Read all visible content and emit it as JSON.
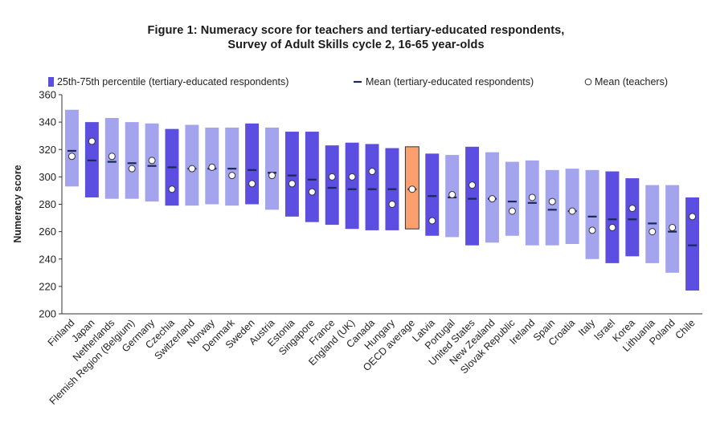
{
  "chart_data": {
    "type": "bar",
    "title_line1": "Figure 1: Numeracy score for teachers and tertiary-educated respondents,",
    "title_line2": "Survey of Adult Skills cycle 2, 16-65 year-olds",
    "ylabel": "Numeracy score",
    "xlabel": "",
    "ylim": [
      200,
      360
    ],
    "yticks": [
      200,
      220,
      240,
      260,
      280,
      300,
      320,
      340,
      360
    ],
    "grid": false,
    "legend_position": "top",
    "legend": {
      "range": "25th-75th percentile (tertiary-educated respondents)",
      "mean_tertiary": "Mean (tertiary-educated respondents)",
      "mean_teachers": "Mean (teachers)"
    },
    "colors": {
      "light": "#a3a3ee",
      "dark": "#5b4ee0",
      "highlight": "#fb9f6e",
      "highlight_border": "#333333",
      "mean_line": "#1a2a55",
      "point_fill": "#ffffff",
      "point_stroke": "#333333"
    },
    "categories": [
      "Finland",
      "Japan",
      "Netherlands",
      "Flemish Region (Belgium)",
      "Germany",
      "Czechia",
      "Switzerland",
      "Norway",
      "Denmark",
      "Sweden",
      "Austria",
      "Estonia",
      "Singapore",
      "France",
      "England (UK)",
      "Canada",
      "Hungary",
      "OECD average",
      "Latvia",
      "Portugal",
      "United States",
      "New Zealand",
      "Slovak Republic",
      "Ireland",
      "Spain",
      "Croatia",
      "Italy",
      "Israel",
      "Korea",
      "Lithuania",
      "Poland",
      "Chile"
    ],
    "bar_style": [
      "light",
      "dark",
      "light",
      "light",
      "light",
      "dark",
      "light",
      "light",
      "light",
      "dark",
      "light",
      "dark",
      "dark",
      "dark",
      "dark",
      "dark",
      "dark",
      "highlight",
      "dark",
      "light",
      "dark",
      "light",
      "light",
      "light",
      "light",
      "light",
      "light",
      "dark",
      "dark",
      "light",
      "light",
      "dark"
    ],
    "p25": [
      293,
      285,
      284,
      284,
      282,
      279,
      279,
      280,
      279,
      280,
      276,
      271,
      267,
      265,
      262,
      261,
      261,
      262,
      257,
      256,
      250,
      252,
      257,
      250,
      250,
      251,
      240,
      237,
      242,
      237,
      230,
      217
    ],
    "p75": [
      349,
      340,
      343,
      340,
      339,
      335,
      338,
      336,
      336,
      339,
      336,
      333,
      333,
      323,
      325,
      324,
      321,
      322,
      317,
      316,
      322,
      318,
      311,
      312,
      305,
      306,
      305,
      304,
      299,
      294,
      294,
      285
    ],
    "mean_tertiary": [
      319,
      312,
      311,
      310,
      308,
      307,
      306,
      306,
      306,
      305,
      303,
      301,
      298,
      292,
      291,
      291,
      291,
      291,
      286,
      285,
      284,
      284,
      282,
      281,
      276,
      275,
      271,
      269,
      269,
      266,
      260,
      250
    ],
    "mean_teachers": [
      315,
      326,
      315,
      306,
      312,
      291,
      306,
      307,
      301,
      295,
      301,
      295,
      289,
      300,
      300,
      304,
      280,
      291,
      268,
      287,
      294,
      284,
      275,
      285,
      282,
      275,
      261,
      263,
      277,
      260,
      263,
      271
    ]
  }
}
